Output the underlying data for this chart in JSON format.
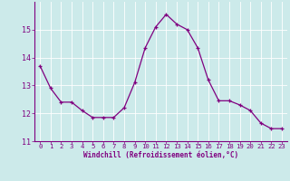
{
  "x": [
    0,
    1,
    2,
    3,
    4,
    5,
    6,
    7,
    8,
    9,
    10,
    11,
    12,
    13,
    14,
    15,
    16,
    17,
    18,
    19,
    20,
    21,
    22,
    23
  ],
  "y": [
    13.7,
    12.9,
    12.4,
    12.4,
    12.1,
    11.85,
    11.85,
    11.85,
    12.2,
    13.1,
    14.35,
    15.1,
    15.55,
    15.2,
    15.0,
    14.35,
    13.2,
    12.45,
    12.45,
    12.3,
    12.1,
    11.65,
    11.45,
    11.45
  ],
  "line_color": "#800080",
  "marker": "+",
  "marker_color": "#800080",
  "bg_color": "#cceaea",
  "grid_color": "#ffffff",
  "xlabel": "Windchill (Refroidissement éolien,°C)",
  "xlabel_color": "#800080",
  "tick_color": "#800080",
  "axis_color": "#800080",
  "ylim": [
    11,
    16
  ],
  "xlim": [
    -0.5,
    23.5
  ],
  "yticks": [
    11,
    12,
    13,
    14,
    15
  ],
  "xticks": [
    0,
    1,
    2,
    3,
    4,
    5,
    6,
    7,
    8,
    9,
    10,
    11,
    12,
    13,
    14,
    15,
    16,
    17,
    18,
    19,
    20,
    21,
    22,
    23
  ],
  "linewidth": 0.9,
  "markersize": 3.5
}
